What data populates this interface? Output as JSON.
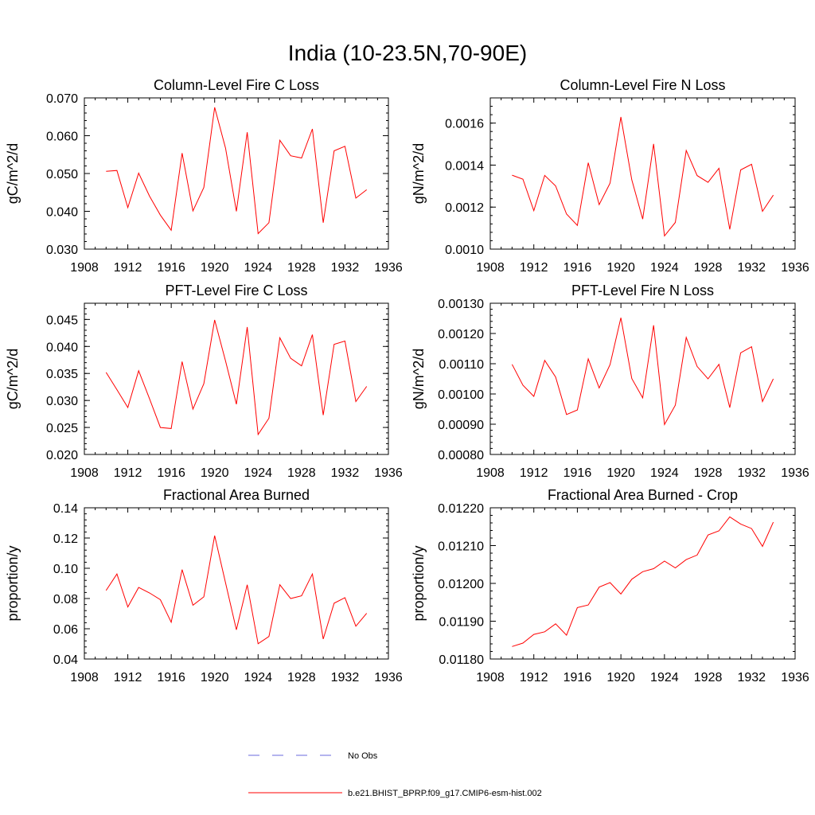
{
  "figure": {
    "title": "India (10-23.5N,70-90E)"
  },
  "legend": {
    "entries": [
      {
        "label": "No Obs",
        "color": "#6a6adc",
        "dash": "dashed"
      },
      {
        "label": "b.e21.BHIST_BPRP.f09_g17.CMIP6-esm-hist.002",
        "color": "#ff0000",
        "dash": "solid"
      }
    ]
  },
  "chart_data": [
    {
      "type": "line",
      "title": "Column-Level Fire C Loss",
      "ylabel": "gC/m^2/d",
      "xlim": [
        1908,
        1936
      ],
      "xticks": [
        "1908",
        "1912",
        "1916",
        "1920",
        "1924",
        "1928",
        "1932",
        "1936"
      ],
      "ylim": [
        0.03,
        0.07
      ],
      "yticks": [
        "0.030",
        "0.040",
        "0.050",
        "0.060",
        "0.070"
      ],
      "grid": false,
      "x": [
        1910,
        1911,
        1912,
        1913,
        1914,
        1915,
        1916,
        1917,
        1918,
        1919,
        1920,
        1921,
        1922,
        1923,
        1924,
        1925,
        1926,
        1927,
        1928,
        1929,
        1930,
        1931,
        1932,
        1933,
        1934
      ],
      "series": [
        {
          "name": "b.e21.BHIST_BPRP.f09_g17.CMIP6-esm-hist.002",
          "color": "#ff0000",
          "values": [
            0.0506,
            0.0508,
            0.041,
            0.0501,
            0.044,
            0.039,
            0.035,
            0.0554,
            0.0401,
            0.0463,
            0.0675,
            0.0567,
            0.04,
            0.0609,
            0.0341,
            0.037,
            0.0588,
            0.0547,
            0.0541,
            0.0618,
            0.037,
            0.056,
            0.0572,
            0.0435,
            0.0457
          ]
        }
      ]
    },
    {
      "type": "line",
      "title": "Column-Level Fire N Loss",
      "ylabel": "gN/m^2/d",
      "xlim": [
        1908,
        1936
      ],
      "xticks": [
        "1908",
        "1912",
        "1916",
        "1920",
        "1924",
        "1928",
        "1932",
        "1936"
      ],
      "ylim": [
        0.001,
        0.00172
      ],
      "yticks": [
        "0.0010",
        "0.0012",
        "0.0014",
        "0.0016"
      ],
      "ytick_values": [
        0.001,
        0.0012,
        0.0014,
        0.0016
      ],
      "grid": false,
      "x": [
        1910,
        1911,
        1912,
        1913,
        1914,
        1915,
        1916,
        1917,
        1918,
        1919,
        1920,
        1921,
        1922,
        1923,
        1924,
        1925,
        1926,
        1927,
        1928,
        1929,
        1930,
        1931,
        1932,
        1933,
        1934
      ],
      "series": [
        {
          "name": "b.e21.BHIST_BPRP.f09_g17.CMIP6-esm-hist.002",
          "color": "#ff0000",
          "values": [
            0.001352,
            0.001333,
            0.001183,
            0.001351,
            0.001301,
            0.001167,
            0.001113,
            0.001411,
            0.001212,
            0.001314,
            0.001629,
            0.00133,
            0.001143,
            0.001501,
            0.001063,
            0.001127,
            0.00147,
            0.00135,
            0.001318,
            0.001385,
            0.001094,
            0.001377,
            0.001404,
            0.00118,
            0.001257
          ]
        }
      ]
    },
    {
      "type": "line",
      "title": "PFT-Level Fire C Loss",
      "ylabel": "gC/m^2/d",
      "xlim": [
        1908,
        1936
      ],
      "xticks": [
        "1908",
        "1912",
        "1916",
        "1920",
        "1924",
        "1928",
        "1932",
        "1936"
      ],
      "ylim": [
        0.02,
        0.048
      ],
      "yticks": [
        "0.020",
        "0.025",
        "0.030",
        "0.035",
        "0.040",
        "0.045"
      ],
      "ytick_values": [
        0.02,
        0.025,
        0.03,
        0.035,
        0.04,
        0.045
      ],
      "grid": false,
      "x": [
        1910,
        1911,
        1912,
        1913,
        1914,
        1915,
        1916,
        1917,
        1918,
        1919,
        1920,
        1921,
        1922,
        1923,
        1924,
        1925,
        1926,
        1927,
        1928,
        1929,
        1930,
        1931,
        1932,
        1933,
        1934
      ],
      "series": [
        {
          "name": "b.e21.BHIST_BPRP.f09_g17.CMIP6-esm-hist.002",
          "color": "#ff0000",
          "values": [
            0.0352,
            0.032,
            0.0287,
            0.0355,
            0.0303,
            0.025,
            0.0248,
            0.0372,
            0.0284,
            0.0331,
            0.0449,
            0.0373,
            0.0293,
            0.0436,
            0.0237,
            0.0267,
            0.0416,
            0.0378,
            0.0364,
            0.0422,
            0.0273,
            0.0404,
            0.041,
            0.0298,
            0.0326
          ]
        }
      ]
    },
    {
      "type": "line",
      "title": "PFT-Level Fire N Loss",
      "ylabel": "gN/m^2/d",
      "xlim": [
        1908,
        1936
      ],
      "xticks": [
        "1908",
        "1912",
        "1916",
        "1920",
        "1924",
        "1928",
        "1932",
        "1936"
      ],
      "ylim": [
        0.0008,
        0.0013
      ],
      "yticks": [
        "0.00080",
        "0.00090",
        "0.00100",
        "0.00110",
        "0.00120",
        "0.00130"
      ],
      "ytick_values": [
        0.0008,
        0.0009,
        0.001,
        0.0011,
        0.0012,
        0.0013
      ],
      "grid": false,
      "x": [
        1910,
        1911,
        1912,
        1913,
        1914,
        1915,
        1916,
        1917,
        1918,
        1919,
        1920,
        1921,
        1922,
        1923,
        1924,
        1925,
        1926,
        1927,
        1928,
        1929,
        1930,
        1931,
        1932,
        1933,
        1934
      ],
      "series": [
        {
          "name": "b.e21.BHIST_BPRP.f09_g17.CMIP6-esm-hist.002",
          "color": "#ff0000",
          "values": [
            0.001098,
            0.001029,
            0.000992,
            0.001111,
            0.001056,
            0.000932,
            0.000947,
            0.001116,
            0.00102,
            0.001097,
            0.001252,
            0.001051,
            0.000987,
            0.001227,
            0.000899,
            0.000963,
            0.001187,
            0.001091,
            0.00105,
            0.001098,
            0.000955,
            0.001136,
            0.001156,
            0.000975,
            0.00105
          ]
        }
      ]
    },
    {
      "type": "line",
      "title": "Fractional Area Burned",
      "ylabel": "proportion/y",
      "xlim": [
        1908,
        1936
      ],
      "xticks": [
        "1908",
        "1912",
        "1916",
        "1920",
        "1924",
        "1928",
        "1932",
        "1936"
      ],
      "ylim": [
        0.04,
        0.14
      ],
      "yticks": [
        "0.04",
        "0.06",
        "0.08",
        "0.10",
        "0.12",
        "0.14"
      ],
      "ytick_values": [
        0.04,
        0.06,
        0.08,
        0.1,
        0.12,
        0.14
      ],
      "grid": false,
      "x": [
        1910,
        1911,
        1912,
        1913,
        1914,
        1915,
        1916,
        1917,
        1918,
        1919,
        1920,
        1921,
        1922,
        1923,
        1924,
        1925,
        1926,
        1927,
        1928,
        1929,
        1930,
        1931,
        1932,
        1933,
        1934
      ],
      "series": [
        {
          "name": "b.e21.BHIST_BPRP.f09_g17.CMIP6-esm-hist.002",
          "color": "#ff0000",
          "values": [
            0.0853,
            0.0962,
            0.0744,
            0.0873,
            0.0837,
            0.0792,
            0.0643,
            0.0991,
            0.0756,
            0.0811,
            0.1216,
            0.0903,
            0.0593,
            0.0891,
            0.0501,
            0.0549,
            0.0891,
            0.08,
            0.0818,
            0.0962,
            0.0532,
            0.0769,
            0.0806,
            0.0617,
            0.0702
          ]
        }
      ]
    },
    {
      "type": "line",
      "title": "Fractional Area Burned - Crop",
      "ylabel": "proportion/y",
      "xlim": [
        1908,
        1936
      ],
      "xticks": [
        "1908",
        "1912",
        "1916",
        "1920",
        "1924",
        "1928",
        "1932",
        "1936"
      ],
      "ylim": [
        0.0118,
        0.0122
      ],
      "yticks": [
        "0.01180",
        "0.01190",
        "0.01200",
        "0.01210",
        "0.01220"
      ],
      "ytick_values": [
        0.0118,
        0.0119,
        0.012,
        0.0121,
        0.0122
      ],
      "grid": false,
      "x": [
        1910,
        1911,
        1912,
        1913,
        1914,
        1915,
        1916,
        1917,
        1918,
        1919,
        1920,
        1921,
        1922,
        1923,
        1924,
        1925,
        1926,
        1927,
        1928,
        1929,
        1930,
        1931,
        1932,
        1933,
        1934
      ],
      "series": [
        {
          "name": "b.e21.BHIST_BPRP.f09_g17.CMIP6-esm-hist.002",
          "color": "#ff0000",
          "values": [
            0.011833,
            0.011842,
            0.011865,
            0.011872,
            0.011893,
            0.011863,
            0.011936,
            0.011943,
            0.01199,
            0.012002,
            0.011972,
            0.012011,
            0.012031,
            0.012039,
            0.012059,
            0.012041,
            0.012063,
            0.012075,
            0.012128,
            0.012139,
            0.012176,
            0.012157,
            0.012145,
            0.012098,
            0.012162
          ]
        }
      ]
    }
  ]
}
